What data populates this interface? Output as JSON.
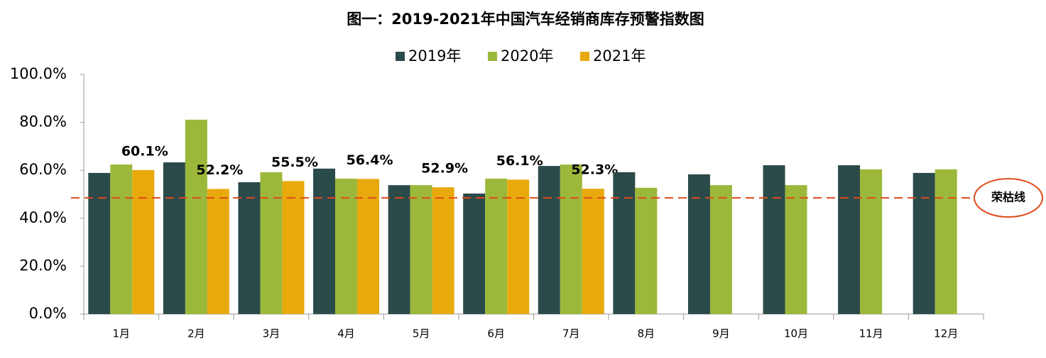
{
  "chart_data": {
    "type": "bar",
    "title": "图一：2019-2021年中国汽车经销商库存预警指数图",
    "categories": [
      "1月",
      "2月",
      "3月",
      "4月",
      "5月",
      "6月",
      "7月",
      "8月",
      "9月",
      "10月",
      "11月",
      "12月"
    ],
    "series": [
      {
        "name": "2019年",
        "color": "#2b4a4a",
        "values": [
          58.9,
          63.3,
          55.0,
          60.7,
          53.8,
          50.3,
          61.8,
          59.2,
          58.3,
          62.1,
          62.1,
          58.9
        ]
      },
      {
        "name": "2020年",
        "color": "#9cb83a",
        "values": [
          62.4,
          81.1,
          59.2,
          56.5,
          53.8,
          56.5,
          62.4,
          52.7,
          53.8,
          53.8,
          60.4,
          60.4
        ]
      },
      {
        "name": "2021年",
        "color": "#e8a90c",
        "values": [
          60.1,
          52.2,
          55.5,
          56.4,
          52.9,
          56.1,
          52.3,
          null,
          null,
          null,
          null,
          null
        ],
        "value_labels": [
          "60.1%",
          "52.2%",
          "55.5%",
          "56.4%",
          "52.9%",
          "56.1%",
          "52.3%",
          null,
          null,
          null,
          null,
          null
        ]
      }
    ],
    "ylim": [
      0,
      100
    ],
    "yticks": [
      {
        "value": 0,
        "label": "0.0%"
      },
      {
        "value": 20,
        "label": "20.0%"
      },
      {
        "value": 40,
        "label": "40.0%"
      },
      {
        "value": 60,
        "label": "60.0%"
      },
      {
        "value": 80,
        "label": "80.0%"
      },
      {
        "value": 100,
        "label": "100.0%"
      }
    ],
    "grid": false,
    "legend": "top",
    "threshold": {
      "value": 48.5,
      "label": "荣枯线",
      "color": "#e04a1c"
    }
  }
}
